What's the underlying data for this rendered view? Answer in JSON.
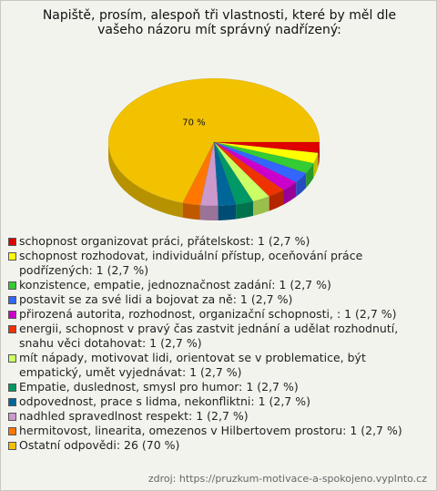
{
  "chart_data": {
    "type": "pie",
    "title": "Napiště, prosím, alespoň tři vlastnosti, které by měl dle vašeho názoru mít správný nadřízený:",
    "categories": [
      "schopnost organizovat práci, přátelskost: 1 (2,7 %)",
      "schopnost rozhodovat, individuální přístup, oceňování práce podřízených: 1 (2,7 %)",
      "konzistence, empatie, jednoznačnost zadání: 1 (2,7 %)",
      "postavit se za své lidi a bojovat za ně: 1 (2,7 %)",
      "přirozená autorita, rozhodnost, organizační schopnosti, : 1 (2,7 %)",
      "energii, schopnost v pravý čas zastvit jednání a udělat rozhodnutí, snahu věci dotahovat: 1 (2,7 %)",
      "mít nápady, motivovat lidi, orientovat se v problematice, být empatický, umět vyjednávat: 1 (2,7 %)",
      "Empatie, duslednost, smysl pro humor: 1 (2,7 %)",
      "odpovednost, prace s lidma, nekonfliktni: 1 (2,7 %)",
      "nadhled spravedlnost respekt: 1 (2,7 %)",
      "hermitovost, linearita, omezenos v Hilbertovem prostoru: 1 (2,7 %)",
      "Ostatní odpovědi: 26 (70 %)"
    ],
    "values": [
      2.7,
      2.7,
      2.7,
      2.7,
      2.7,
      2.7,
      2.7,
      2.7,
      2.7,
      2.7,
      2.7,
      70
    ],
    "value_labels": [
      null,
      null,
      null,
      null,
      null,
      null,
      null,
      null,
      null,
      null,
      null,
      "70 %"
    ],
    "colors": [
      "#e00000",
      "#ffff00",
      "#33cc33",
      "#3366ff",
      "#cc00cc",
      "#ee3300",
      "#ccff66",
      "#009966",
      "#006699",
      "#cc99cc",
      "#ff7700",
      "#f2c200"
    ],
    "source": "zdroj: https://pruzkum-motivace-a-spokojeno.vyplnto.cz"
  }
}
